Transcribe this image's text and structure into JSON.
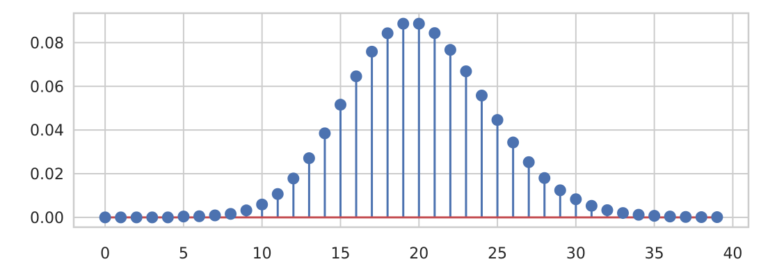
{
  "chart_data": {
    "type": "stem",
    "x": [
      0,
      1,
      2,
      3,
      4,
      5,
      6,
      7,
      8,
      9,
      10,
      11,
      12,
      13,
      14,
      15,
      16,
      17,
      18,
      19,
      20,
      21,
      22,
      23,
      24,
      25,
      26,
      27,
      28,
      29,
      30,
      31,
      32,
      33,
      34,
      35,
      36,
      37,
      38,
      39
    ],
    "values": [
      0.0,
      0.0,
      0.0,
      0.0,
      0.0,
      0.0004,
      0.0005,
      0.0009,
      0.0016,
      0.0032,
      0.0059,
      0.0107,
      0.0178,
      0.0271,
      0.0385,
      0.0516,
      0.0646,
      0.0759,
      0.0843,
      0.0887,
      0.0887,
      0.0844,
      0.0767,
      0.0669,
      0.0558,
      0.0446,
      0.0343,
      0.0253,
      0.018,
      0.0124,
      0.0083,
      0.0053,
      0.0033,
      0.002,
      0.0012,
      0.0007,
      0.0004,
      0.0002,
      0.0001,
      0.0001
    ],
    "title": "",
    "xlabel": "",
    "ylabel": "",
    "xlim": [
      -2,
      41
    ],
    "ylim": [
      -0.0045,
      0.0935
    ],
    "xticks": [
      0,
      5,
      10,
      15,
      20,
      25,
      30,
      35,
      40
    ],
    "yticks": [
      0.0,
      0.02,
      0.04,
      0.06,
      0.08
    ],
    "ytick_labels": [
      "0.00",
      "0.02",
      "0.04",
      "0.06",
      "0.08"
    ],
    "baseline": 0,
    "grid": true,
    "colors": {
      "stem": "#4c72b0",
      "marker": "#4c72b0",
      "baseline": "#c44e52",
      "grid": "#cccccc",
      "spine": "#cccccc"
    }
  }
}
